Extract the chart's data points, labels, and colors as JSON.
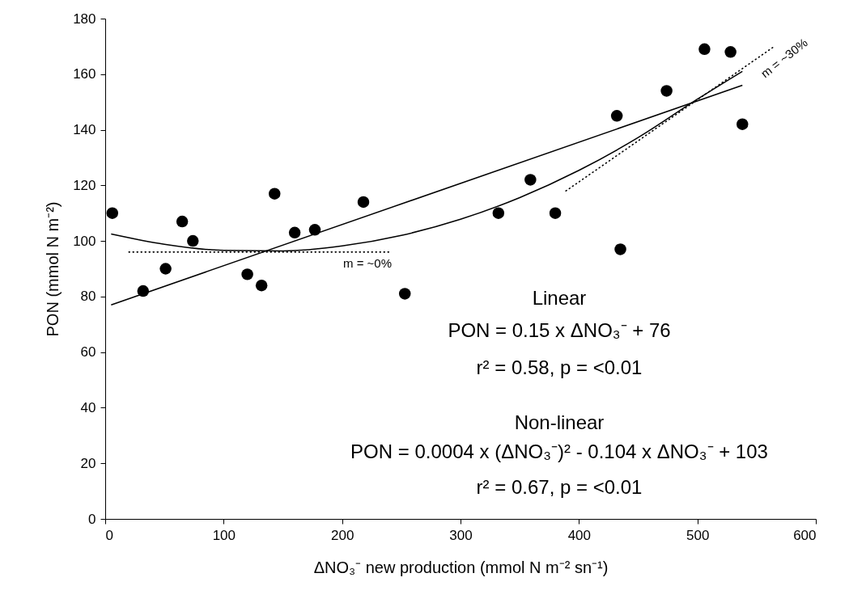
{
  "chart_data": {
    "type": "scatter",
    "xlabel": "ΔNO₃⁻  new production (mmol N m⁻² sn⁻¹)",
    "ylabel": "PON (mmol N m⁻²)",
    "xlim": [
      0,
      600
    ],
    "xticks": [
      0,
      100,
      200,
      300,
      400,
      500,
      600
    ],
    "ylim": [
      0,
      180
    ],
    "yticks": [
      0,
      20,
      40,
      60,
      80,
      100,
      120,
      140,
      160,
      180
    ],
    "grid": false,
    "series": [
      {
        "marker": "circle",
        "color": "#000000",
        "x": [
          6,
          32,
          51,
          65,
          74,
          120,
          132,
          143,
          160,
          177,
          218,
          253,
          332,
          359,
          380,
          432,
          435,
          474,
          506,
          528,
          538
        ],
        "values": [
          110,
          82,
          90,
          107,
          100,
          88,
          84,
          117,
          103,
          104,
          114,
          81,
          110,
          122,
          110,
          145,
          97,
          154,
          169,
          168,
          142
        ]
      },
      {
        "type": "line",
        "marker": "none",
        "color": "#000000",
        "line_style": "solid",
        "x": [
          5,
          538
        ],
        "values": [
          77,
          156
        ]
      },
      {
        "type": "line",
        "marker": "none",
        "color": "#000000",
        "line_style": "solid",
        "x": [
          5,
          50,
          100,
          150,
          200,
          250,
          300,
          350,
          400,
          450,
          500,
          538
        ],
        "values": [
          102.5,
          98.8,
          96.6,
          96.4,
          98.2,
          102,
          107.8,
          115.6,
          125.4,
          137.2,
          151,
          161
        ]
      },
      {
        "type": "line",
        "marker": "none",
        "color": "#000000",
        "line_style": "dotted",
        "x": [
          20,
          240
        ],
        "values": [
          96,
          96
        ]
      },
      {
        "type": "line",
        "marker": "none",
        "color": "#000000",
        "line_style": "dotted",
        "x": [
          389,
          565
        ],
        "values": [
          118,
          170
        ]
      }
    ],
    "annotations": [
      "m = ~0%",
      "m = ~30%",
      "Linear",
      "PON = 0.15 x ΔNO₃⁻  + 76",
      "r² = 0.58, p = <0.01",
      "Non-linear",
      "PON = 0.0004 x (ΔNO₃⁻)² - 0.104 x ΔNO₃⁻  + 103",
      "r² = 0.67, p = <0.01"
    ]
  }
}
